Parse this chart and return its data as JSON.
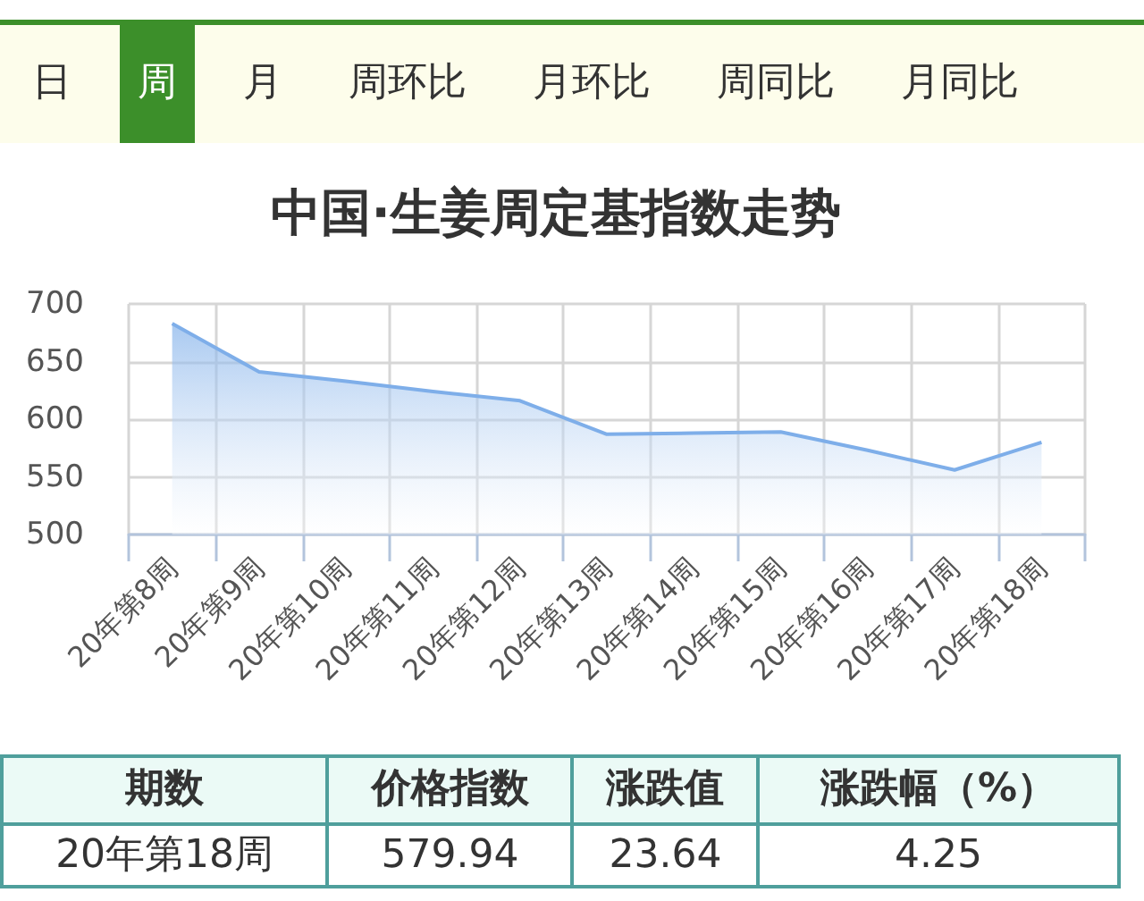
{
  "chart_data": [
    {
      "type": "other",
      "categories": [
        "日",
        "周",
        "月",
        "周环比",
        "月环比",
        "周同比",
        "月同比"
      ],
      "colors": [
        "#fdfdeb",
        "#3c8f2a",
        "#fdfdeb",
        "#fdfdeb",
        "#fdfdeb",
        "#fdfdeb",
        "#fdfdeb"
      ]
    },
    {
      "type": "area",
      "title": "中国·生姜周定基指数走势",
      "categories": [
        "20年第8周",
        "20年第9周",
        "20年第10周",
        "20年第11周",
        "20年第12周",
        "20年第13周",
        "20年第14周",
        "20年第15周",
        "20年第16周",
        "20年第17周",
        "20年第18周"
      ],
      "values": [
        683,
        641,
        633,
        624,
        616,
        587,
        588,
        589,
        573,
        556,
        580
      ],
      "color": "#7eaee9",
      "ylim": [
        500,
        700
      ],
      "yticks": [
        500,
        550,
        600,
        650,
        700
      ],
      "grid": true,
      "marker": "none"
    },
    {
      "type": "other",
      "categories": [
        "期数",
        "价格指数",
        "涨跌值",
        "涨跌幅（%）"
      ],
      "annotations": [
        "20年第18周",
        "579.94",
        "23.64",
        "4.25"
      ]
    }
  ]
}
